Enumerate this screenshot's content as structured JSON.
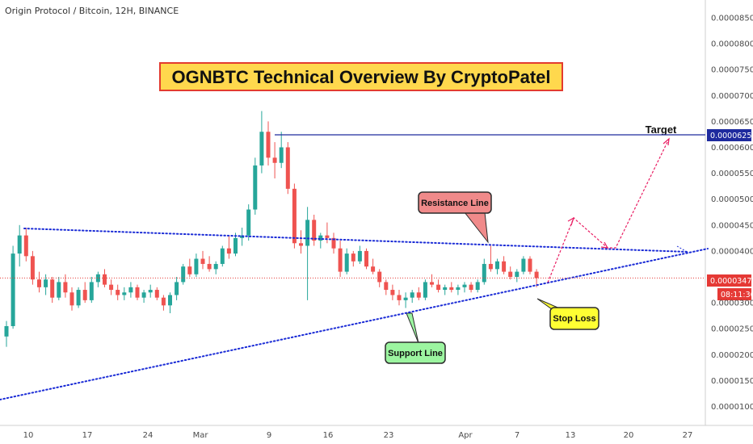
{
  "header": {
    "symbol_title": "Origin Protocol / Bitcoin, 12H, BINANCE"
  },
  "banner": {
    "text": "OGNBTC Technical Overview By CryptoPatel",
    "bg": "#ffd84d",
    "border": "#e33b2e"
  },
  "colors": {
    "up": "#26a69a",
    "down": "#ef5350",
    "support": "#1a2bd6",
    "target": "#1e2a9e",
    "arrows": "#e91e63",
    "price_line": "#e53935"
  },
  "price_axis": {
    "ticks": [
      "0.00008500",
      "0.00008000",
      "0.00007500",
      "0.00007000",
      "0.00006500",
      "0.00006000",
      "0.00005500",
      "0.00005000",
      "0.00004500",
      "0.00004000",
      "0.00003000",
      "0.00002500",
      "0.00002000",
      "0.00001500",
      "0.00001000"
    ],
    "target_label": "0.00006252",
    "current_label": "0.00003478",
    "countdown": "08:11:36"
  },
  "time_axis": {
    "labels": [
      "10",
      "17",
      "24",
      "Mar",
      "9",
      "16",
      "23",
      "Apr",
      "7",
      "13",
      "20",
      "27"
    ]
  },
  "annotations": {
    "target": "Target",
    "resistance": "Resistance Line",
    "support": "Support Line",
    "stop_loss": "Stop Loss"
  },
  "chart_data": {
    "type": "candlestick",
    "title": "Origin Protocol / Bitcoin, 12H, BINANCE",
    "ylim": [
      8.8e-06,
      8.7e-06
    ],
    "y_range": [
      8.8e-06,
      8.7e-06
    ],
    "levels": {
      "target": 6.252e-05,
      "current_price": 3.478e-05
    },
    "x_labels": [
      "10",
      "17",
      "24",
      "Mar",
      "9",
      "16",
      "23",
      "Apr",
      "7",
      "13",
      "20",
      "27"
    ],
    "candles": [
      [
        2.35e-05,
        2.65e-05,
        2.15e-05,
        2.55e-05
      ],
      [
        2.55e-05,
        4.1e-05,
        2.5e-05,
        3.95e-05
      ],
      [
        3.95e-05,
        4.5e-05,
        3.7e-05,
        4.3e-05
      ],
      [
        4.3e-05,
        4.45e-05,
        3.8e-05,
        3.9e-05
      ],
      [
        3.9e-05,
        4e-05,
        3.35e-05,
        3.45e-05
      ],
      [
        3.45e-05,
        3.6e-05,
        3.2e-05,
        3.3e-05
      ],
      [
        3.3e-05,
        3.55e-05,
        3.15e-05,
        3.45e-05
      ],
      [
        3.45e-05,
        3.5e-05,
        3e-05,
        3.1e-05
      ],
      [
        3.1e-05,
        3.5e-05,
        3.05e-05,
        3.4e-05
      ],
      [
        3.4e-05,
        3.55e-05,
        3.1e-05,
        3.2e-05
      ],
      [
        3.2e-05,
        3.3e-05,
        2.85e-05,
        2.95e-05
      ],
      [
        2.95e-05,
        3.3e-05,
        2.9e-05,
        3.25e-05
      ],
      [
        3.25e-05,
        3.4e-05,
        3e-05,
        3.05e-05
      ],
      [
        3.05e-05,
        3.5e-05,
        3e-05,
        3.4e-05
      ],
      [
        3.4e-05,
        3.6e-05,
        3.3e-05,
        3.55e-05
      ],
      [
        3.55e-05,
        3.65e-05,
        3.3e-05,
        3.35e-05
      ],
      [
        3.35e-05,
        3.45e-05,
        3.15e-05,
        3.25e-05
      ],
      [
        3.25e-05,
        3.35e-05,
        3.05e-05,
        3.15e-05
      ],
      [
        3.15e-05,
        3.3e-05,
        3.05e-05,
        3.2e-05
      ],
      [
        3.2e-05,
        3.4e-05,
        3.1e-05,
        3.3e-05
      ],
      [
        3.3e-05,
        3.35e-05,
        3.05e-05,
        3.1e-05
      ],
      [
        3.1e-05,
        3.25e-05,
        3e-05,
        3.2e-05
      ],
      [
        3.2e-05,
        3.35e-05,
        3.1e-05,
        3.25e-05
      ],
      [
        3.25e-05,
        3.3e-05,
        3.05e-05,
        3.1e-05
      ],
      [
        3.1e-05,
        3.15e-05,
        2.85e-05,
        2.95e-05
      ],
      [
        2.95e-05,
        3.2e-05,
        2.8e-05,
        3.15e-05
      ],
      [
        3.15e-05,
        3.5e-05,
        3.05e-05,
        3.4e-05
      ],
      [
        3.4e-05,
        3.75e-05,
        3.35e-05,
        3.7e-05
      ],
      [
        3.7e-05,
        3.85e-05,
        3.5e-05,
        3.55e-05
      ],
      [
        3.55e-05,
        3.95e-05,
        3.5e-05,
        3.85e-05
      ],
      [
        3.85e-05,
        4e-05,
        3.65e-05,
        3.75e-05
      ],
      [
        3.75e-05,
        3.9e-05,
        3.6e-05,
        3.65e-05
      ],
      [
        3.65e-05,
        3.8e-05,
        3.55e-05,
        3.75e-05
      ],
      [
        3.75e-05,
        4.1e-05,
        3.7e-05,
        4.05e-05
      ],
      [
        4.05e-05,
        4.3e-05,
        3.85e-05,
        3.95e-05
      ],
      [
        3.95e-05,
        4.35e-05,
        3.9e-05,
        4.25e-05
      ],
      [
        4.25e-05,
        4.45e-05,
        4.1e-05,
        4.3e-05
      ],
      [
        4.3e-05,
        4.9e-05,
        4.2e-05,
        4.8e-05
      ],
      [
        4.8e-05,
        5.8e-05,
        4.7e-05,
        5.65e-05
      ],
      [
        5.65e-05,
        6.7e-05,
        5.5e-05,
        6.3e-05
      ],
      [
        6.3e-05,
        6.5e-05,
        5.65e-05,
        5.8e-05
      ],
      [
        5.8e-05,
        6.1e-05,
        5.4e-05,
        5.7e-05
      ],
      [
        5.7e-05,
        6.3e-05,
        5.6e-05,
        6e-05
      ],
      [
        6e-05,
        6.1e-05,
        5.1e-05,
        5.2e-05
      ],
      [
        5.2e-05,
        5.3e-05,
        4.05e-05,
        4.15e-05
      ],
      [
        4.15e-05,
        4.4e-05,
        3.95e-05,
        4.1e-05
      ],
      [
        4.1e-05,
        4.85e-05,
        3.05e-05,
        4.6e-05
      ],
      [
        4.6e-05,
        4.7e-05,
        4.1e-05,
        4.2e-05
      ],
      [
        4.2e-05,
        4.35e-05,
        4.05e-05,
        4.3e-05
      ],
      [
        4.3e-05,
        4.55e-05,
        4.15e-05,
        4.25e-05
      ],
      [
        4.25e-05,
        4.35e-05,
        3.95e-05,
        4.05e-05
      ],
      [
        4.05e-05,
        4.2e-05,
        3.5e-05,
        3.6e-05
      ],
      [
        3.6e-05,
        4.05e-05,
        3.55e-05,
        3.95e-05
      ],
      [
        3.95e-05,
        4e-05,
        3.7e-05,
        3.8e-05
      ],
      [
        3.8e-05,
        4.1e-05,
        3.75e-05,
        4e-05
      ],
      [
        4e-05,
        4.05e-05,
        3.65e-05,
        3.7e-05
      ],
      [
        3.7e-05,
        3.85e-05,
        3.55e-05,
        3.6e-05
      ],
      [
        3.6e-05,
        3.65e-05,
        3.3e-05,
        3.4e-05
      ],
      [
        3.4e-05,
        3.45e-05,
        3.15e-05,
        3.25e-05
      ],
      [
        3.25e-05,
        3.35e-05,
        3.05e-05,
        3.15e-05
      ],
      [
        3.15e-05,
        3.25e-05,
        2.95e-05,
        3.05e-05
      ],
      [
        3.05e-05,
        3.2e-05,
        2.9e-05,
        3.1e-05
      ],
      [
        3.1e-05,
        3.25e-05,
        3e-05,
        3.2e-05
      ],
      [
        3.2e-05,
        3.3e-05,
        3.05e-05,
        3.1e-05
      ],
      [
        3.1e-05,
        3.45e-05,
        3.05e-05,
        3.4e-05
      ],
      [
        3.4e-05,
        3.55e-05,
        3.3e-05,
        3.35e-05
      ],
      [
        3.35e-05,
        3.45e-05,
        3.2e-05,
        3.25e-05
      ],
      [
        3.25e-05,
        3.35e-05,
        3.15e-05,
        3.3e-05
      ],
      [
        3.3e-05,
        3.4e-05,
        3.2e-05,
        3.25e-05
      ],
      [
        3.25e-05,
        3.35e-05,
        3.15e-05,
        3.3e-05
      ],
      [
        3.3e-05,
        3.4e-05,
        3.2e-05,
        3.35e-05
      ],
      [
        3.35e-05,
        3.4e-05,
        3.2e-05,
        3.25e-05
      ],
      [
        3.25e-05,
        3.45e-05,
        3.2e-05,
        3.4e-05
      ],
      [
        3.4e-05,
        3.85e-05,
        3.35e-05,
        3.75e-05
      ],
      [
        3.75e-05,
        4.1e-05,
        3.6e-05,
        3.65e-05
      ],
      [
        3.65e-05,
        3.85e-05,
        3.55e-05,
        3.8e-05
      ],
      [
        3.8e-05,
        3.9e-05,
        3.55e-05,
        3.6e-05
      ],
      [
        3.6e-05,
        3.7e-05,
        3.45e-05,
        3.5e-05
      ],
      [
        3.5e-05,
        3.65e-05,
        3.4e-05,
        3.6e-05
      ],
      [
        3.6e-05,
        3.9e-05,
        3.55e-05,
        3.85e-05
      ],
      [
        3.85e-05,
        3.9e-05,
        3.55e-05,
        3.6e-05
      ],
      [
        3.6e-05,
        3.65e-05,
        3.3e-05,
        3.478e-05
      ]
    ]
  }
}
